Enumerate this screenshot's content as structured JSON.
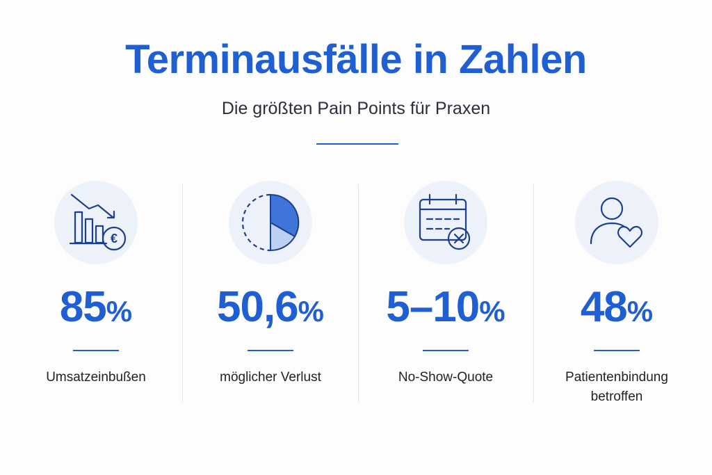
{
  "header": {
    "title": "Terminausfälle in Zahlen",
    "subtitle": "Die größten Pain Points für Praxen"
  },
  "stats": [
    {
      "value": "85",
      "unit": "%",
      "label": "Umsatzeinbußen"
    },
    {
      "value": "50,6",
      "unit": "%",
      "label": "möglicher Verlust"
    },
    {
      "value": "5–10",
      "unit": "%",
      "label": "No-Show-Quote"
    },
    {
      "value": "48",
      "unit": "%",
      "label": "Patientenbindung betroffen"
    }
  ]
}
